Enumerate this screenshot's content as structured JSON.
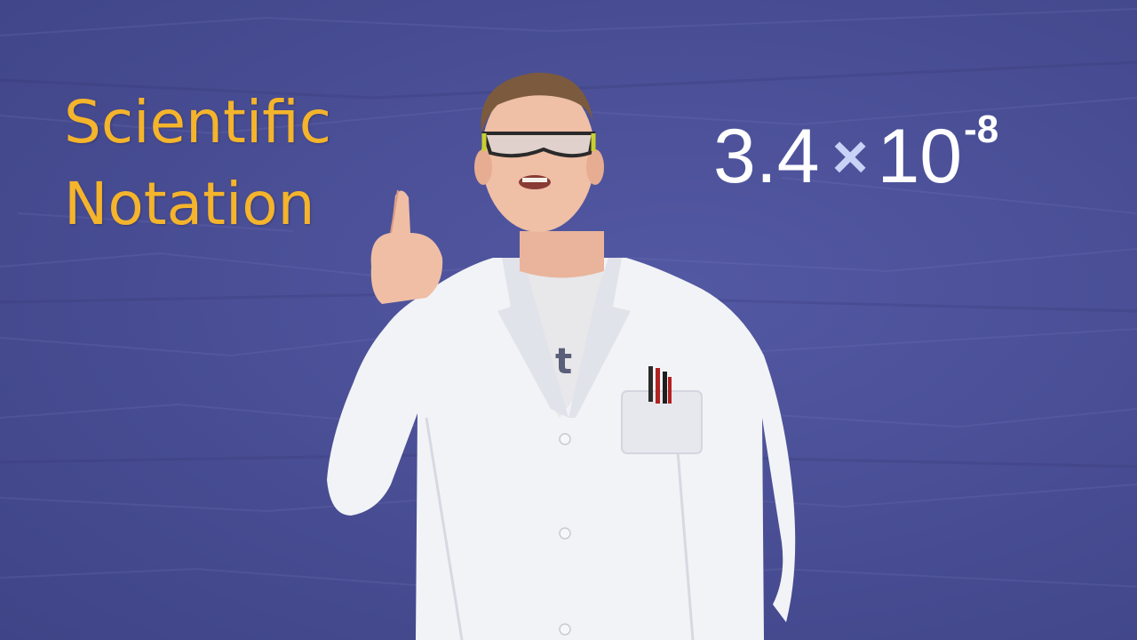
{
  "title": {
    "line1": "Scientific",
    "line2": "Notation"
  },
  "notation": {
    "coefficient": "3.4",
    "times": "×",
    "base": "10",
    "exponent": "-8"
  },
  "colors": {
    "background": "#4a4f97",
    "title": "#f4b42b",
    "notation": "#ffffff",
    "times_sign": "#c9d2f7"
  },
  "presenter": {
    "description_icon": "presenter-in-lab-coat"
  }
}
